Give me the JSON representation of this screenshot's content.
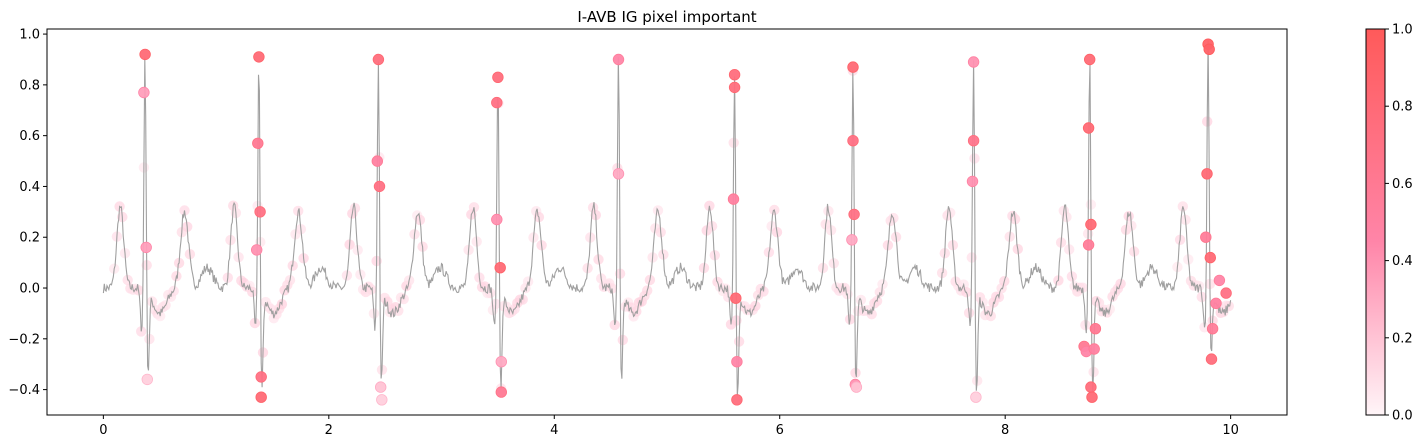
{
  "chart_data": {
    "type": "scatter",
    "title": "I-AVB IG pixel important",
    "xlabel": "",
    "ylabel": "",
    "xlim": [
      -0.5,
      10.5
    ],
    "ylim": [
      -0.5,
      1.02
    ],
    "x_ticks": [
      0,
      2,
      4,
      6,
      8,
      10
    ],
    "y_ticks": [
      -0.4,
      -0.2,
      0.0,
      0.2,
      0.4,
      0.6,
      0.8,
      1.0
    ],
    "x_tick_labels": [
      "0",
      "2",
      "4",
      "6",
      "8",
      "10"
    ],
    "y_tick_labels": [
      "−0.4",
      "−0.2",
      "0.0",
      "0.2",
      "0.4",
      "0.6",
      "0.8",
      "1.0"
    ],
    "grid": false,
    "line_color": "#a0a0a0",
    "point_color": "#ff6070",
    "colorbar": {
      "range": [
        0.0,
        1.0
      ],
      "ticks": [
        0.0,
        0.2,
        0.4,
        0.6,
        0.8,
        1.0
      ],
      "tick_labels": [
        "0.0",
        "0.2",
        "0.4",
        "0.6",
        "0.8",
        "1.0"
      ],
      "color_low": "#fff5f8",
      "color_mid": "#ff85a8",
      "color_high": "#ff5a5a"
    },
    "beat_times": [
      0.37,
      1.38,
      2.44,
      3.5,
      4.57,
      5.6,
      6.65,
      7.72,
      8.75,
      9.8
    ],
    "r_peaks": [
      0.92,
      0.91,
      0.9,
      0.83,
      0.9,
      0.84,
      0.87,
      0.89,
      0.9,
      0.96
    ],
    "s_troughs": [
      -0.36,
      -0.43,
      -0.41,
      -0.41,
      -0.39,
      -0.44,
      -0.39,
      -0.44,
      -0.43,
      -0.28
    ],
    "important_points": [
      {
        "x": 0.37,
        "y": 0.92,
        "w": 0.8
      },
      {
        "x": 0.36,
        "y": 0.77,
        "w": 0.35
      },
      {
        "x": 0.38,
        "y": 0.16,
        "w": 0.35
      },
      {
        "x": 0.39,
        "y": -0.36,
        "w": 0.15
      },
      {
        "x": 1.38,
        "y": 0.91,
        "w": 0.8
      },
      {
        "x": 1.37,
        "y": 0.57,
        "w": 0.6
      },
      {
        "x": 1.39,
        "y": 0.3,
        "w": 0.7
      },
      {
        "x": 1.36,
        "y": 0.15,
        "w": 0.4
      },
      {
        "x": 1.4,
        "y": -0.35,
        "w": 0.7
      },
      {
        "x": 1.4,
        "y": -0.43,
        "w": 0.8
      },
      {
        "x": 2.44,
        "y": 0.9,
        "w": 0.75
      },
      {
        "x": 2.43,
        "y": 0.5,
        "w": 0.5
      },
      {
        "x": 2.45,
        "y": 0.4,
        "w": 0.7
      },
      {
        "x": 2.46,
        "y": -0.39,
        "w": 0.2
      },
      {
        "x": 2.47,
        "y": -0.44,
        "w": 0.15
      },
      {
        "x": 3.5,
        "y": 0.83,
        "w": 0.75
      },
      {
        "x": 3.49,
        "y": 0.73,
        "w": 0.7
      },
      {
        "x": 3.49,
        "y": 0.27,
        "w": 0.4
      },
      {
        "x": 3.52,
        "y": 0.08,
        "w": 0.8
      },
      {
        "x": 3.53,
        "y": -0.29,
        "w": 0.3
      },
      {
        "x": 3.53,
        "y": -0.41,
        "w": 0.6
      },
      {
        "x": 4.57,
        "y": 0.9,
        "w": 0.45
      },
      {
        "x": 4.57,
        "y": 0.45,
        "w": 0.3
      },
      {
        "x": 5.6,
        "y": 0.84,
        "w": 0.75
      },
      {
        "x": 5.6,
        "y": 0.79,
        "w": 0.75
      },
      {
        "x": 5.59,
        "y": 0.35,
        "w": 0.5
      },
      {
        "x": 5.61,
        "y": -0.04,
        "w": 0.8
      },
      {
        "x": 5.62,
        "y": -0.29,
        "w": 0.45
      },
      {
        "x": 5.62,
        "y": -0.44,
        "w": 0.75
      },
      {
        "x": 6.65,
        "y": 0.87,
        "w": 0.8
      },
      {
        "x": 6.65,
        "y": 0.58,
        "w": 0.7
      },
      {
        "x": 6.66,
        "y": 0.29,
        "w": 0.7
      },
      {
        "x": 6.64,
        "y": 0.19,
        "w": 0.3
      },
      {
        "x": 6.67,
        "y": -0.38,
        "w": 0.4
      },
      {
        "x": 6.68,
        "y": -0.39,
        "w": 0.2
      },
      {
        "x": 7.72,
        "y": 0.89,
        "w": 0.4
      },
      {
        "x": 7.72,
        "y": 0.58,
        "w": 0.65
      },
      {
        "x": 7.71,
        "y": 0.42,
        "w": 0.4
      },
      {
        "x": 7.74,
        "y": -0.43,
        "w": 0.15
      },
      {
        "x": 8.75,
        "y": 0.9,
        "w": 0.8
      },
      {
        "x": 8.74,
        "y": 0.63,
        "w": 0.8
      },
      {
        "x": 8.76,
        "y": 0.25,
        "w": 0.8
      },
      {
        "x": 8.74,
        "y": 0.17,
        "w": 0.55
      },
      {
        "x": 8.76,
        "y": -0.39,
        "w": 0.75
      },
      {
        "x": 8.77,
        "y": -0.43,
        "w": 0.8
      },
      {
        "x": 8.8,
        "y": -0.16,
        "w": 0.6
      },
      {
        "x": 8.7,
        "y": -0.23,
        "w": 0.6
      },
      {
        "x": 8.72,
        "y": -0.25,
        "w": 0.45
      },
      {
        "x": 8.79,
        "y": -0.24,
        "w": 0.5
      },
      {
        "x": 9.8,
        "y": 0.96,
        "w": 0.9
      },
      {
        "x": 9.81,
        "y": 0.94,
        "w": 0.9
      },
      {
        "x": 9.79,
        "y": 0.45,
        "w": 0.8
      },
      {
        "x": 9.78,
        "y": 0.2,
        "w": 0.55
      },
      {
        "x": 9.82,
        "y": 0.12,
        "w": 0.8
      },
      {
        "x": 9.84,
        "y": -0.16,
        "w": 0.55
      },
      {
        "x": 9.83,
        "y": -0.28,
        "w": 0.75
      },
      {
        "x": 9.96,
        "y": -0.02,
        "w": 0.7
      },
      {
        "x": 9.9,
        "y": 0.03,
        "w": 0.45
      },
      {
        "x": 9.87,
        "y": -0.06,
        "w": 0.5
      }
    ]
  }
}
